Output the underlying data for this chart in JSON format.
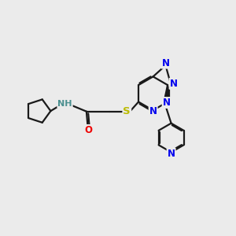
{
  "bg_color": "#ebebeb",
  "bond_color": "#1a1a1a",
  "bond_width": 1.6,
  "atom_colors": {
    "N": "#0000ee",
    "O": "#ee0000",
    "S": "#bbbb00",
    "NH": "#4a8f8f",
    "C": "#1a1a1a"
  },
  "font_size": 8.5
}
